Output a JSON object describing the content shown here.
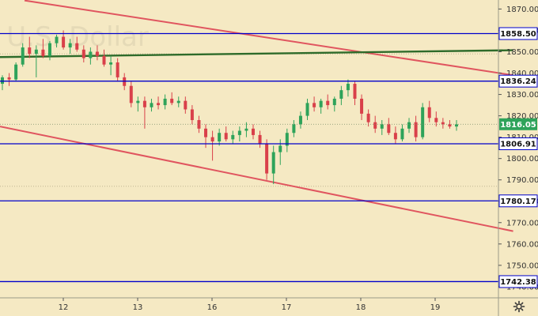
{
  "watermark": "/ U.S. Dollar",
  "colors": {
    "background": "#f5e9c3",
    "level_line": "#0000cc",
    "trend_red": "#e0555f",
    "trend_green": "#2e6b2a",
    "candle_up": "#2ea35a",
    "candle_down": "#d9404a",
    "current_price_line": "#7a8f6a",
    "last_price_badge": "#2ea35a"
  },
  "settings_icon": "gear-icon",
  "chart_data": {
    "type": "candlestick",
    "ylim": [
      1737,
      1872
    ],
    "y_ticks": [
      1740,
      1750,
      1760,
      1770,
      1780,
      1790,
      1800,
      1810,
      1820,
      1830,
      1840,
      1850,
      1860,
      1870
    ],
    "x_labels": [
      "12",
      "13",
      "16",
      "17",
      "18",
      "19"
    ],
    "levels": [
      {
        "label": "1858.50",
        "value": 1858.5
      },
      {
        "label": "1836.24",
        "value": 1836.24
      },
      {
        "label": "1806.91",
        "value": 1806.91
      },
      {
        "label": "1780.17",
        "value": 1780.17
      },
      {
        "label": "1742.38",
        "value": 1742.38
      }
    ],
    "last_price": {
      "label": "1816.05",
      "value": 1816.05
    },
    "trendlines": [
      {
        "color": "red",
        "from": [
          0.33,
          1874.0
        ],
        "to": [
          6.9,
          1839.0
        ]
      },
      {
        "color": "green",
        "from": [
          0.0,
          1847.5
        ],
        "to": [
          6.9,
          1850.7
        ]
      },
      {
        "color": "red",
        "from": [
          0.0,
          1815.0
        ],
        "to": [
          6.9,
          1766.0
        ]
      }
    ],
    "candles": [
      [
        1835,
        1839,
        1832,
        1838
      ],
      [
        1838,
        1840,
        1834,
        1837
      ],
      [
        1837,
        1845,
        1836,
        1844
      ],
      [
        1844,
        1854,
        1843,
        1852
      ],
      [
        1852,
        1857,
        1847,
        1849
      ],
      [
        1849,
        1853,
        1838,
        1851
      ],
      [
        1851,
        1856,
        1847,
        1848
      ],
      [
        1848,
        1855,
        1846,
        1854
      ],
      [
        1854,
        1858,
        1852,
        1857
      ],
      [
        1857,
        1860,
        1851,
        1852
      ],
      [
        1852,
        1856,
        1849,
        1854
      ],
      [
        1854,
        1857,
        1850,
        1851
      ],
      [
        1851,
        1853,
        1845,
        1847
      ],
      [
        1847,
        1852,
        1844,
        1850
      ],
      [
        1850,
        1853,
        1846,
        1848
      ],
      [
        1848,
        1851,
        1843,
        1844
      ],
      [
        1844,
        1848,
        1839,
        1845
      ],
      [
        1845,
        1847,
        1836,
        1838
      ],
      [
        1838,
        1840,
        1832,
        1834
      ],
      [
        1834,
        1836,
        1824,
        1826
      ],
      [
        1826,
        1829,
        1822,
        1827
      ],
      [
        1827,
        1829,
        1814,
        1824
      ],
      [
        1824,
        1828,
        1822,
        1826
      ],
      [
        1826,
        1829,
        1823,
        1825
      ],
      [
        1825,
        1830,
        1823,
        1828
      ],
      [
        1828,
        1831,
        1825,
        1826
      ],
      [
        1826,
        1829,
        1824,
        1827
      ],
      [
        1827,
        1829,
        1821,
        1823
      ],
      [
        1823,
        1825,
        1816,
        1818
      ],
      [
        1818,
        1820,
        1812,
        1814
      ],
      [
        1814,
        1816,
        1805,
        1810
      ],
      [
        1810,
        1813,
        1799,
        1808
      ],
      [
        1808,
        1814,
        1806,
        1812
      ],
      [
        1812,
        1815,
        1808,
        1809
      ],
      [
        1809,
        1813,
        1807,
        1811
      ],
      [
        1811,
        1815,
        1808,
        1813
      ],
      [
        1813,
        1817,
        1810,
        1814
      ],
      [
        1814,
        1816,
        1809,
        1811
      ],
      [
        1811,
        1813,
        1805,
        1807
      ],
      [
        1807,
        1809,
        1790,
        1793
      ],
      [
        1793,
        1806,
        1788,
        1803
      ],
      [
        1803,
        1809,
        1797,
        1806
      ],
      [
        1806,
        1814,
        1803,
        1812
      ],
      [
        1812,
        1818,
        1810,
        1816
      ],
      [
        1816,
        1822,
        1814,
        1820
      ],
      [
        1820,
        1828,
        1818,
        1826
      ],
      [
        1826,
        1829,
        1822,
        1824
      ],
      [
        1824,
        1828,
        1821,
        1827
      ],
      [
        1827,
        1830,
        1823,
        1825
      ],
      [
        1825,
        1829,
        1822,
        1828
      ],
      [
        1828,
        1834,
        1825,
        1832
      ],
      [
        1832,
        1837,
        1829,
        1835
      ],
      [
        1835,
        1836,
        1825,
        1828
      ],
      [
        1828,
        1830,
        1818,
        1821
      ],
      [
        1821,
        1823,
        1815,
        1817
      ],
      [
        1817,
        1820,
        1812,
        1814
      ],
      [
        1814,
        1818,
        1811,
        1816
      ],
      [
        1816,
        1819,
        1811,
        1812
      ],
      [
        1812,
        1815,
        1807,
        1809
      ],
      [
        1809,
        1816,
        1808,
        1814
      ],
      [
        1814,
        1819,
        1812,
        1817
      ],
      [
        1817,
        1820,
        1808,
        1810
      ],
      [
        1810,
        1826,
        1809,
        1824
      ],
      [
        1824,
        1827,
        1817,
        1819
      ],
      [
        1819,
        1822,
        1815,
        1817
      ],
      [
        1817,
        1819,
        1814,
        1816
      ],
      [
        1816,
        1818,
        1814,
        1815
      ],
      [
        1815,
        1818,
        1813,
        1816
      ]
    ]
  }
}
